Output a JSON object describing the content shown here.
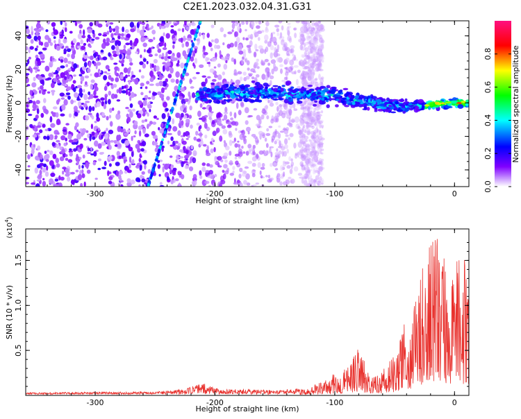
{
  "title": "C2E1.2023.032.04.31.G31",
  "colorbar": {
    "label": "Normalized spectral amplitude",
    "ticks": [
      "0.0",
      "0.2",
      "0.4",
      "0.6",
      "0.8"
    ],
    "tick_values": [
      0.0,
      0.2,
      0.4,
      0.6,
      0.8
    ],
    "range": [
      0,
      1
    ],
    "colormap": [
      "#ffffff",
      "#8000ff",
      "#0000ff",
      "#00ffff",
      "#00ff00",
      "#ffff00",
      "#ff0000",
      "#ff1080"
    ]
  },
  "chart_data": [
    {
      "type": "heatmap",
      "xlabel": "Height of straight line (km)",
      "ylabel": "Frequency (Hz)",
      "xlim": [
        -358,
        12
      ],
      "ylim": [
        -50,
        49
      ],
      "x_ticks": [
        -300,
        -200,
        -100,
        0
      ],
      "x_tick_labels": [
        "-300",
        "-200",
        "-100",
        "0"
      ],
      "y_ticks": [
        -40,
        -20,
        0,
        20,
        40
      ],
      "y_tick_labels": [
        "-40",
        "-20",
        "0",
        "20",
        "40"
      ],
      "ridge": {
        "x": [
          -210,
          -180,
          -150,
          -125,
          -100,
          -80,
          -60,
          -40,
          -20,
          0,
          12
        ],
        "y": [
          5,
          6,
          6,
          5,
          4,
          1,
          -1,
          -2,
          -1,
          0,
          0
        ]
      },
      "slanted_line": {
        "x": [
          -256,
          -212
        ],
        "y": [
          -50,
          49
        ]
      },
      "noise_region_x": [
        -358,
        -128
      ]
    },
    {
      "type": "line",
      "xlabel": "Height of straight line (km)",
      "ylabel": "SNR (10 * v/v)",
      "y_multiplier_label": "(x10",
      "y_multiplier_exp": "4",
      "xlim": [
        -358,
        12
      ],
      "ylim": [
        0,
        1.85
      ],
      "x_ticks": [
        -300,
        -200,
        -100,
        0
      ],
      "x_tick_labels": [
        "-300",
        "-200",
        "-100",
        "0"
      ],
      "y_ticks": [
        0.5,
        1.0,
        1.5
      ],
      "y_tick_labels": [
        "0.5",
        "1.0",
        "1.5"
      ],
      "series_color": "#e8302c",
      "envelope": {
        "x": [
          -358,
          -250,
          -225,
          -212,
          -195,
          -150,
          -125,
          -110,
          -100,
          -90,
          -80,
          -72,
          -60,
          -50,
          -42,
          -35,
          -28,
          -22,
          -15,
          -10,
          -5,
          0,
          5,
          12
        ],
        "y": [
          0.02,
          0.03,
          0.06,
          0.13,
          0.06,
          0.05,
          0.07,
          0.16,
          0.25,
          0.3,
          0.55,
          0.3,
          0.28,
          0.45,
          0.8,
          0.9,
          1.4,
          1.75,
          1.85,
          1.6,
          1.35,
          1.5,
          1.55,
          1.6
        ]
      }
    }
  ]
}
